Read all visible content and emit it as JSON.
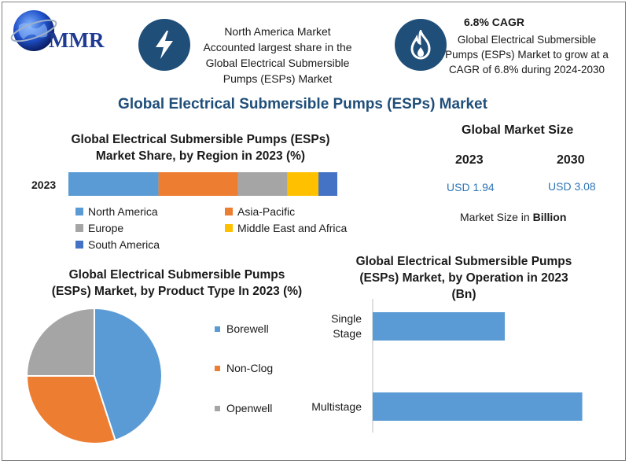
{
  "brand": {
    "logo_text": "MMR"
  },
  "header": {
    "info1": "North America Market Accounted largest share in the Global Electrical Submersible Pumps (ESPs) Market",
    "cagr_title": "6.8% CAGR",
    "cagr_text": "Global Electrical Submersible Pumps (ESPs) Market to grow at a CAGR of 6.8% during 2024-2030",
    "icon1": "lightning-icon",
    "icon2": "flame-icon"
  },
  "main_title": "Global Electrical Submersible Pumps (ESPs) Market",
  "market_size": {
    "title": "Global Market Size",
    "years": [
      {
        "year": "2023",
        "value": "USD 1.94"
      },
      {
        "year": "2030",
        "value": "USD 3.08"
      }
    ],
    "note_prefix": "Market Size in ",
    "note_bold": "Billion"
  },
  "colors": {
    "blue": "#5b9bd5",
    "orange": "#ed7d31",
    "gray": "#a5a5a5",
    "yellow": "#ffc000",
    "darkblue": "#4472c4",
    "navy": "#1f4e79"
  },
  "chart_data": [
    {
      "type": "bar",
      "orientation": "horizontal-stacked",
      "title": "Global Electrical Submersible Pumps (ESPs) Market Share, by Region in 2023 (%)",
      "categories": [
        "2023"
      ],
      "series": [
        {
          "name": "North America",
          "values": [
            33.5
          ],
          "color": "#5b9bd5"
        },
        {
          "name": "Asia-Pacific",
          "values": [
            29.5
          ],
          "color": "#ed7d31"
        },
        {
          "name": "Europe",
          "values": [
            18.5
          ],
          "color": "#a5a5a5"
        },
        {
          "name": "Middle East and Africa",
          "values": [
            11.5
          ],
          "color": "#ffc000"
        },
        {
          "name": "South America",
          "values": [
            7
          ],
          "color": "#4472c4"
        }
      ],
      "legend_order": [
        "North America",
        "Asia-Pacific",
        "Europe",
        "Middle East and Africa",
        "South America"
      ],
      "legend_position": "bottom"
    },
    {
      "type": "pie",
      "title": "Global Electrical Submersible Pumps (ESPs) Market, by Product Type In 2023 (%)",
      "categories": [
        "Borewell",
        "Non-Clog",
        "Openwell"
      ],
      "values": [
        45,
        30,
        25
      ],
      "colors": [
        "#5b9bd5",
        "#ed7d31",
        "#a5a5a5"
      ],
      "legend_position": "right"
    },
    {
      "type": "bar",
      "orientation": "horizontal",
      "title": "Global Electrical Submersible Pumps (ESPs) Market, by Operation in 2023 (Bn)",
      "categories": [
        "Single Stage",
        "Multistage"
      ],
      "values": [
        0.75,
        1.19
      ],
      "color": "#5b9bd5",
      "xlim": [
        0,
        1.25
      ]
    }
  ]
}
